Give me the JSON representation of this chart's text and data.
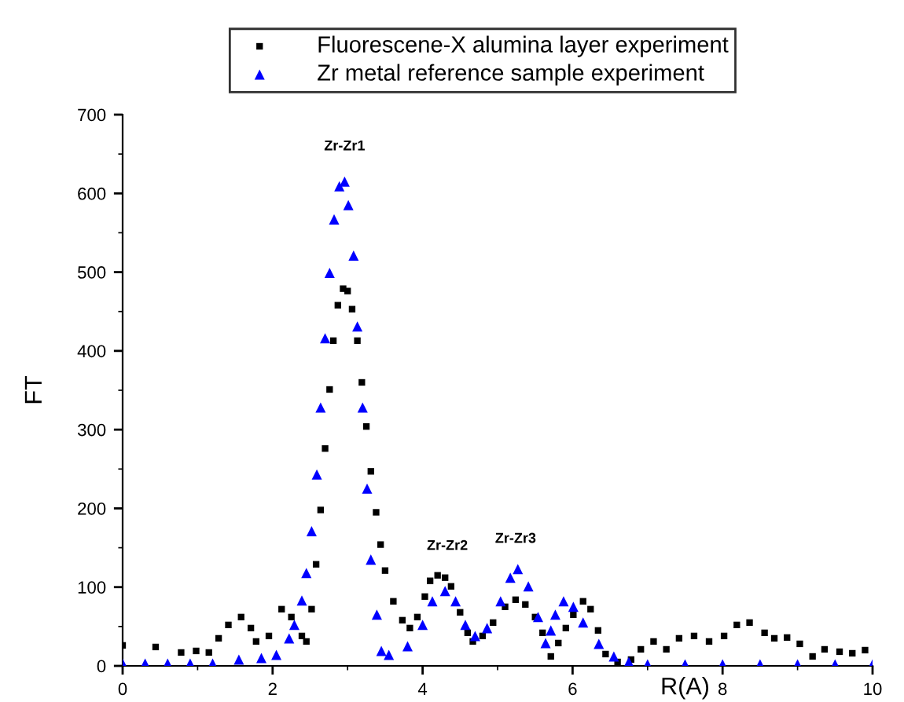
{
  "chart_data": {
    "type": "scatter",
    "xlabel": "R(A)",
    "ylabel": "FT",
    "xlim": [
      0,
      10
    ],
    "ylim": [
      0,
      700
    ],
    "xticks": [
      0,
      2,
      4,
      6,
      8,
      10
    ],
    "yticks": [
      0,
      100,
      200,
      300,
      400,
      500,
      600,
      700
    ],
    "grid": false,
    "legend": "top",
    "series": [
      {
        "name": "Fluorescene-X alumina layer experiment",
        "color": "#000000",
        "marker": "square",
        "x": [
          0,
          0.44,
          0.78,
          0.98,
          1.15,
          1.28,
          1.41,
          1.58,
          1.71,
          1.78,
          1.95,
          2.12,
          2.25,
          2.39,
          2.45,
          2.52,
          2.58,
          2.64,
          2.7,
          2.76,
          2.81,
          2.87,
          2.94,
          3.0,
          3.06,
          3.13,
          3.19,
          3.25,
          3.31,
          3.38,
          3.44,
          3.5,
          3.61,
          3.73,
          3.83,
          3.93,
          4.03,
          4.1,
          4.2,
          4.3,
          4.38,
          4.5,
          4.6,
          4.67,
          4.8,
          4.94,
          5.1,
          5.24,
          5.37,
          5.5,
          5.6,
          5.71,
          5.81,
          5.91,
          6.01,
          6.14,
          6.24,
          6.34,
          6.44,
          6.6,
          6.78,
          6.91,
          7.08,
          7.25,
          7.42,
          7.62,
          7.82,
          8.02,
          8.19,
          8.36,
          8.56,
          8.69,
          8.86,
          9.03,
          9.2,
          9.36,
          9.56,
          9.73,
          9.9
        ],
        "values": [
          26,
          24,
          17,
          19,
          17,
          35,
          52,
          62,
          48,
          31,
          38,
          72,
          62,
          38,
          31,
          72,
          129,
          198,
          276,
          351,
          413,
          458,
          479,
          476,
          453,
          413,
          360,
          304,
          247,
          195,
          154,
          121,
          82,
          58,
          48,
          62,
          88,
          108,
          115,
          112,
          101,
          68,
          42,
          31,
          38,
          55,
          75,
          84,
          78,
          62,
          42,
          12,
          29,
          48,
          65,
          82,
          72,
          45,
          15,
          5,
          8,
          21,
          31,
          21,
          35,
          38,
          31,
          38,
          52,
          55,
          42,
          35,
          36,
          28,
          12,
          21,
          18,
          16,
          20
        ]
      },
      {
        "name": "Zr metal reference sample experiment",
        "color": "#0000ff",
        "marker": "triangle",
        "x": [
          0,
          0.3,
          0.6,
          0.9,
          1.2,
          1.55,
          1.85,
          2.05,
          2.22,
          2.29,
          2.39,
          2.45,
          2.52,
          2.59,
          2.64,
          2.7,
          2.76,
          2.82,
          2.89,
          2.96,
          3.01,
          3.08,
          3.13,
          3.2,
          3.26,
          3.31,
          3.39,
          3.45,
          3.55,
          3.8,
          4.0,
          4.13,
          4.3,
          4.44,
          4.57,
          4.7,
          4.86,
          5.04,
          5.17,
          5.27,
          5.41,
          5.54,
          5.64,
          5.71,
          5.77,
          5.88,
          6.01,
          6.14,
          6.35,
          6.55,
          6.75,
          7.0,
          7.5,
          8.0,
          8.5,
          9.0,
          9.5,
          10.0
        ],
        "values": [
          3,
          3,
          3,
          3,
          3,
          8,
          10,
          14,
          35,
          52,
          83,
          118,
          171,
          243,
          328,
          416,
          499,
          567,
          609,
          615,
          585,
          521,
          431,
          328,
          225,
          135,
          65,
          19,
          14,
          25,
          52,
          82,
          95,
          82,
          52,
          38,
          48,
          82,
          112,
          123,
          101,
          62,
          29,
          45,
          65,
          82,
          75,
          55,
          28,
          12,
          5,
          2,
          2,
          2,
          2,
          2,
          2,
          2
        ]
      }
    ],
    "annotations": [
      "Zr-Zr1",
      "Zr-Zr2",
      "Zr-Zr3"
    ]
  }
}
